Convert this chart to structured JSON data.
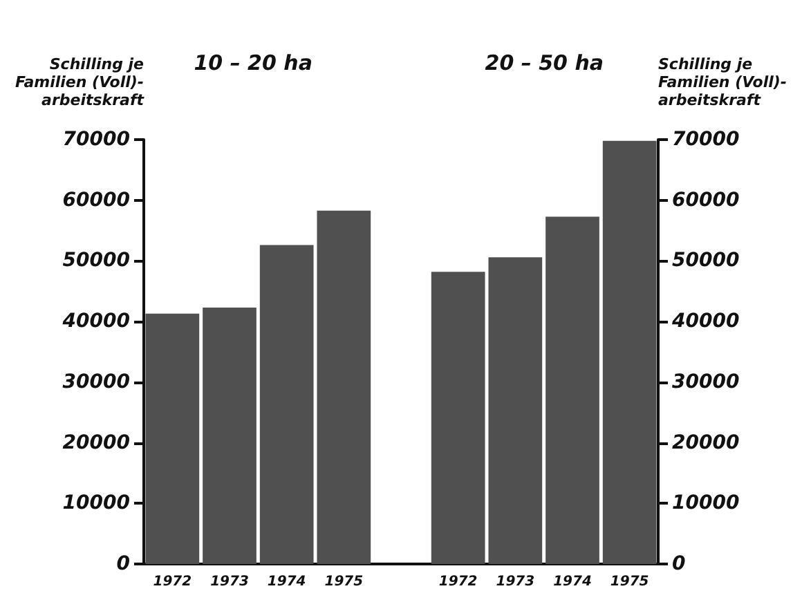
{
  "chart_data": {
    "type": "bar",
    "categories": [
      "1972",
      "1973",
      "1974",
      "1975",
      null,
      "1972",
      "1973",
      "1974",
      "1975"
    ],
    "values": [
      41300,
      42300,
      52600,
      58300,
      null,
      48200,
      50600,
      57300,
      69800
    ],
    "color": "#505050",
    "ylabel": "Schilling je\nFamilien (Voll)-\narbeitskraft",
    "y2label": "Schilling je\nFamilien (Voll)-\narbeitskraft",
    "annotations": [
      "10 – 20 ha",
      "20 – 50 ha"
    ],
    "ylim": [
      0,
      70000
    ],
    "yticks": [
      0,
      10000,
      20000,
      30000,
      40000,
      50000,
      60000,
      70000
    ],
    "y2lim": [
      0,
      70000
    ],
    "y2ticks": [
      0,
      10000,
      20000,
      30000,
      40000,
      50000,
      60000,
      70000
    ],
    "grid": false
  }
}
